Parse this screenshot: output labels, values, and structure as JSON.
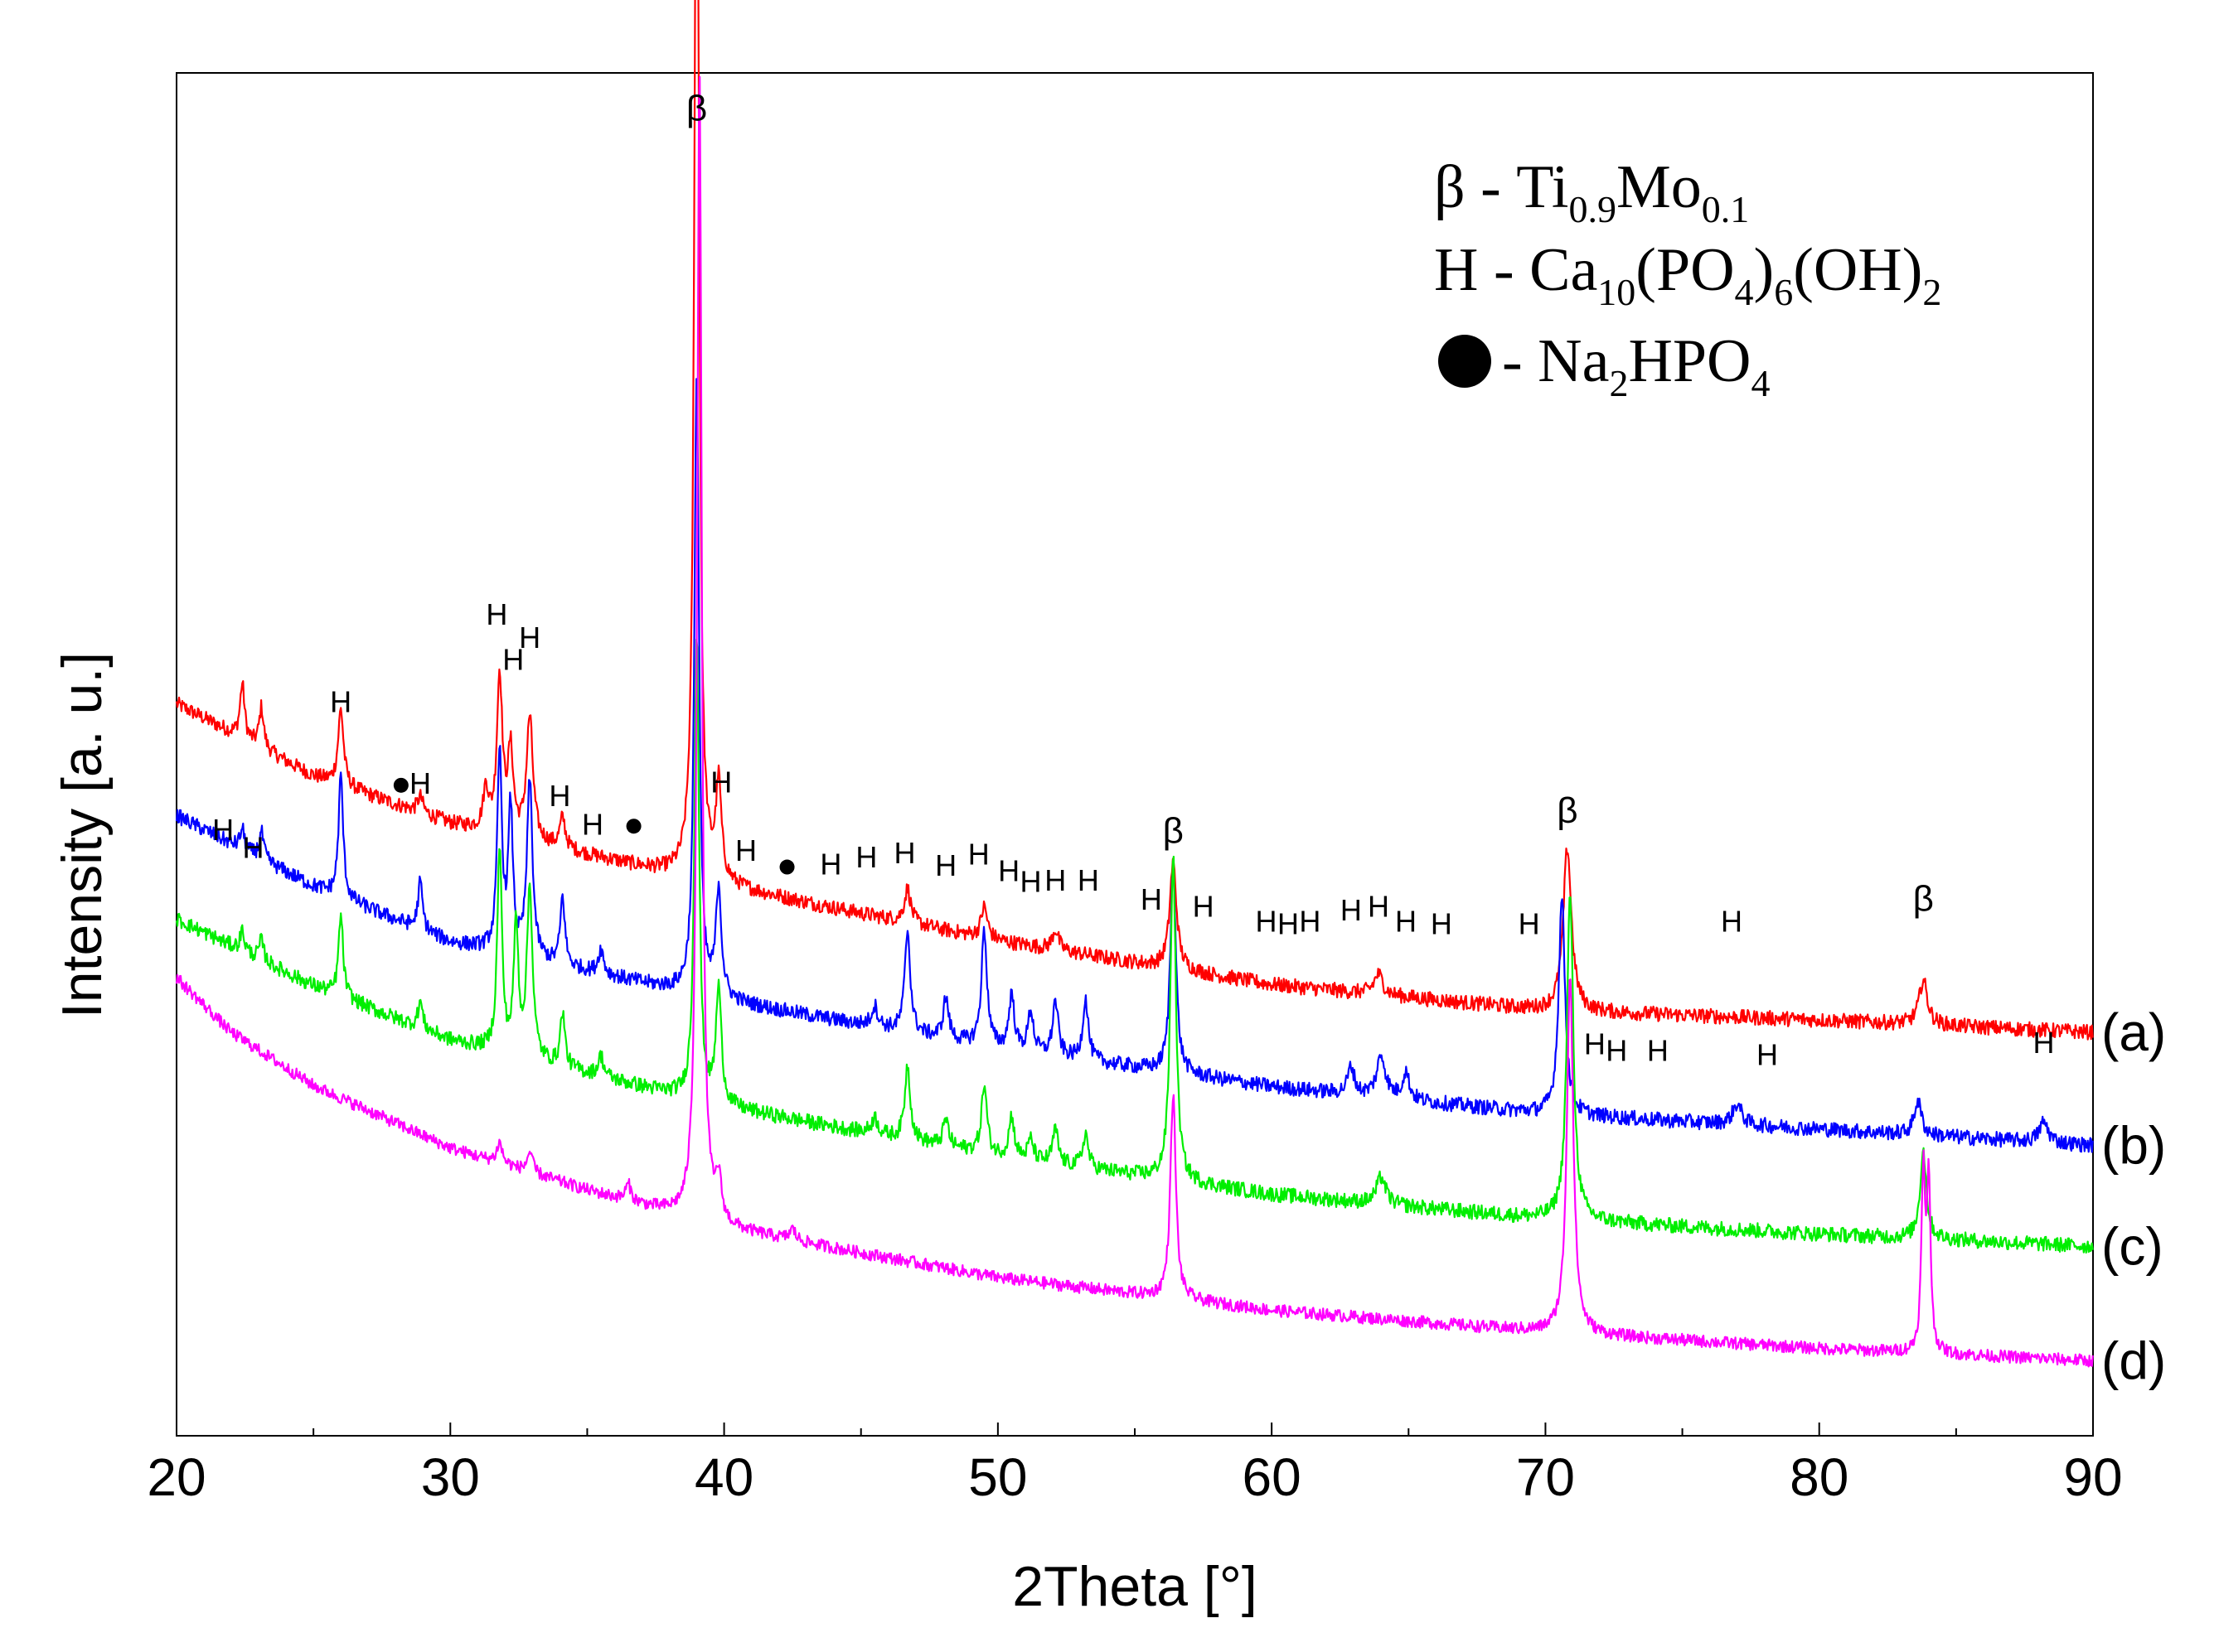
{
  "chart_data": {
    "type": "line",
    "title": "",
    "xlabel": "2Theta [°]",
    "ylabel": "Intensity [a. u.]",
    "xlim": [
      20,
      90
    ],
    "ylim": [
      0,
      100
    ],
    "xticks": [
      "20",
      "30",
      "40",
      "50",
      "60",
      "70",
      "80",
      "90"
    ],
    "legend": [
      {
        "symbol": "β",
        "dash": " - ",
        "formula": [
          [
            "Ti",
            ""
          ],
          [
            "0.9",
            "sub"
          ],
          [
            "Mo",
            ""
          ],
          [
            "0.1",
            "sub"
          ]
        ]
      },
      {
        "symbol": "H",
        "dash": " - ",
        "formula": [
          [
            "Ca",
            ""
          ],
          [
            "10",
            "sub"
          ],
          [
            "(PO",
            ""
          ],
          [
            "4",
            "sub"
          ],
          [
            ")",
            ""
          ],
          [
            "6",
            "sub"
          ],
          [
            "(OH)",
            ""
          ],
          [
            "2",
            "sub"
          ]
        ]
      },
      {
        "symbol": "●",
        "dash": " - ",
        "formula": [
          [
            "Na",
            ""
          ],
          [
            "2",
            "sub"
          ],
          [
            "HPO",
            ""
          ],
          [
            "4",
            "sub"
          ]
        ]
      }
    ],
    "series": [
      {
        "name": "(a)",
        "color": "#ff0000",
        "baseline": [
          [
            20,
            53.7
          ],
          [
            25,
            48.4
          ],
          [
            30,
            44.9
          ],
          [
            40,
            40.3
          ],
          [
            50,
            36.3
          ],
          [
            60,
            33.1
          ],
          [
            70,
            31.2
          ],
          [
            80,
            30.5
          ],
          [
            90,
            29.6
          ]
        ],
        "peaks": [
          [
            22.4,
            4.0,
            0.1
          ],
          [
            23.1,
            3.0,
            0.1
          ],
          [
            26.0,
            5.6,
            0.12
          ],
          [
            28.9,
            1.2,
            0.12
          ],
          [
            31.3,
            3.0,
            0.12
          ],
          [
            31.8,
            11.5,
            0.12
          ],
          [
            32.2,
            6.0,
            0.12
          ],
          [
            32.9,
            9.0,
            0.14
          ],
          [
            34.1,
            2.2,
            0.12
          ],
          [
            39.0,
            88.3,
            0.1
          ],
          [
            39.8,
            7.0,
            0.12
          ],
          [
            46.7,
            2.5,
            0.14
          ],
          [
            49.5,
            2.3,
            0.14
          ],
          [
            52.1,
            1.5,
            0.14
          ],
          [
            56.4,
            7.8,
            0.15
          ],
          [
            63.9,
            1.5,
            0.2
          ],
          [
            70.8,
            12.0,
            0.18
          ],
          [
            83.8,
            3.3,
            0.18
          ]
        ],
        "noise": 0.55
      },
      {
        "name": "(b)",
        "color": "#0000ff",
        "baseline": [
          [
            20,
            45.5
          ],
          [
            25,
            40.3
          ],
          [
            30,
            36.2
          ],
          [
            40,
            31.9
          ],
          [
            50,
            28.4
          ],
          [
            60,
            25.6
          ],
          [
            70,
            23.6
          ],
          [
            80,
            22.5
          ],
          [
            90,
            21.3
          ]
        ],
        "peaks": [
          [
            22.4,
            1.5,
            0.1
          ],
          [
            23.1,
            2.0,
            0.1
          ],
          [
            26.0,
            9.0,
            0.1
          ],
          [
            28.9,
            3.5,
            0.1
          ],
          [
            31.8,
            14.5,
            0.1
          ],
          [
            32.2,
            10.5,
            0.1
          ],
          [
            32.9,
            13.0,
            0.12
          ],
          [
            34.1,
            5.0,
            0.1
          ],
          [
            35.5,
            1.8,
            0.12
          ],
          [
            39.0,
            46.0,
            0.1
          ],
          [
            39.8,
            8.0,
            0.12
          ],
          [
            45.5,
            1.5,
            0.14
          ],
          [
            46.7,
            7.5,
            0.12
          ],
          [
            48.1,
            3.0,
            0.12
          ],
          [
            49.5,
            8.5,
            0.12
          ],
          [
            50.5,
            4.0,
            0.12
          ],
          [
            51.2,
            3.0,
            0.12
          ],
          [
            52.1,
            4.0,
            0.12
          ],
          [
            53.2,
            4.5,
            0.12
          ],
          [
            56.4,
            15.5,
            0.12
          ],
          [
            62.9,
            2.0,
            0.15
          ],
          [
            64.0,
            3.0,
            0.2
          ],
          [
            64.9,
            2.0,
            0.15
          ],
          [
            70.6,
            16.0,
            0.14
          ],
          [
            77.0,
            1.5,
            0.2
          ],
          [
            83.6,
            2.5,
            0.16
          ],
          [
            88.2,
            1.5,
            0.2
          ]
        ],
        "noise": 0.55
      },
      {
        "name": "(c)",
        "color": "#00ee00",
        "baseline": [
          [
            20,
            37.9
          ],
          [
            25,
            33.0
          ],
          [
            30,
            29.0
          ],
          [
            40,
            24.1
          ],
          [
            50,
            20.5
          ],
          [
            60,
            17.7
          ],
          [
            70,
            15.9
          ],
          [
            80,
            14.8
          ],
          [
            90,
            13.9
          ]
        ],
        "peaks": [
          [
            22.4,
            1.5,
            0.1
          ],
          [
            23.1,
            1.5,
            0.1
          ],
          [
            26.0,
            6.0,
            0.1
          ],
          [
            28.9,
            2.0,
            0.1
          ],
          [
            31.8,
            15.0,
            0.1
          ],
          [
            32.4,
            9.5,
            0.1
          ],
          [
            32.9,
            12.5,
            0.12
          ],
          [
            34.1,
            4.0,
            0.1
          ],
          [
            35.5,
            1.5,
            0.12
          ],
          [
            39.0,
            34.5,
            0.1
          ],
          [
            39.8,
            8.5,
            0.12
          ],
          [
            45.5,
            1.2,
            0.14
          ],
          [
            46.7,
            5.5,
            0.12
          ],
          [
            48.1,
            2.0,
            0.12
          ],
          [
            49.5,
            5.0,
            0.12
          ],
          [
            50.5,
            3.0,
            0.12
          ],
          [
            51.2,
            1.5,
            0.12
          ],
          [
            52.1,
            2.5,
            0.12
          ],
          [
            53.2,
            2.5,
            0.12
          ],
          [
            56.4,
            24.0,
            0.12
          ],
          [
            64.0,
            2.0,
            0.2
          ],
          [
            70.9,
            24.0,
            0.14
          ],
          [
            83.8,
            6.5,
            0.14
          ]
        ],
        "noise": 0.55
      },
      {
        "name": "(d)",
        "color": "#ff00ff",
        "baseline": [
          [
            20,
            33.6
          ],
          [
            22,
            29.6
          ],
          [
            25,
            25.7
          ],
          [
            30,
            21.1
          ],
          [
            35,
            18.0
          ],
          [
            40,
            15.2
          ],
          [
            50,
            11.6
          ],
          [
            60,
            9.2
          ],
          [
            70,
            7.6
          ],
          [
            80,
            6.4
          ],
          [
            90,
            5.5
          ]
        ],
        "peaks": [
          [
            31.8,
            1.5,
            0.12
          ],
          [
            32.9,
            1.5,
            0.12
          ],
          [
            36.5,
            1.2,
            0.12
          ],
          [
            39.1,
            84.5,
            0.1
          ],
          [
            39.8,
            3.0,
            0.12
          ],
          [
            42.5,
            0.8,
            0.14
          ],
          [
            56.4,
            15.0,
            0.12
          ],
          [
            70.9,
            26.5,
            0.14
          ],
          [
            83.8,
            13.0,
            0.08
          ],
          [
            84.0,
            12.5,
            0.08
          ]
        ],
        "noise": 0.45
      }
    ],
    "annotations": [
      {
        "text": "β",
        "x": 39.0,
        "y": 96.5,
        "kind": "beta"
      },
      {
        "text": "β",
        "x": 56.4,
        "y": 43.5,
        "kind": "beta"
      },
      {
        "text": "β",
        "x": 70.8,
        "y": 45.0,
        "kind": "beta"
      },
      {
        "text": "β",
        "x": 83.8,
        "y": 38.5,
        "kind": "beta"
      },
      {
        "text": "H",
        "x": 21.7,
        "y": 43.7,
        "kind": "H"
      },
      {
        "text": "H",
        "x": 22.8,
        "y": 42.4,
        "kind": "H"
      },
      {
        "text": "H",
        "x": 26.0,
        "y": 53.1,
        "kind": "H"
      },
      {
        "text": "H",
        "x": 28.9,
        "y": 47.1,
        "kind": "H"
      },
      {
        "text": "H",
        "x": 31.7,
        "y": 59.5,
        "kind": "H"
      },
      {
        "text": "H",
        "x": 32.3,
        "y": 56.2,
        "kind": "H"
      },
      {
        "text": "H",
        "x": 32.9,
        "y": 57.8,
        "kind": "H"
      },
      {
        "text": "H",
        "x": 34.0,
        "y": 46.2,
        "kind": "H"
      },
      {
        "text": "H",
        "x": 35.2,
        "y": 44.1,
        "kind": "H"
      },
      {
        "text": "H",
        "x": 39.9,
        "y": 47.2,
        "kind": "H"
      },
      {
        "text": "H",
        "x": 40.8,
        "y": 42.2,
        "kind": "H"
      },
      {
        "text": "H",
        "x": 43.9,
        "y": 41.2,
        "kind": "H"
      },
      {
        "text": "H",
        "x": 45.2,
        "y": 41.7,
        "kind": "H"
      },
      {
        "text": "H",
        "x": 46.6,
        "y": 42.0,
        "kind": "H"
      },
      {
        "text": "H",
        "x": 48.1,
        "y": 41.1,
        "kind": "H"
      },
      {
        "text": "H",
        "x": 49.3,
        "y": 41.9,
        "kind": "H"
      },
      {
        "text": "H",
        "x": 50.4,
        "y": 40.7,
        "kind": "H"
      },
      {
        "text": "H",
        "x": 51.2,
        "y": 39.9,
        "kind": "H"
      },
      {
        "text": "H",
        "x": 52.1,
        "y": 40.0,
        "kind": "H"
      },
      {
        "text": "H",
        "x": 53.3,
        "y": 40.0,
        "kind": "H"
      },
      {
        "text": "H",
        "x": 55.6,
        "y": 38.6,
        "kind": "H"
      },
      {
        "text": "H",
        "x": 57.5,
        "y": 38.1,
        "kind": "H"
      },
      {
        "text": "H",
        "x": 59.8,
        "y": 37.0,
        "kind": "H"
      },
      {
        "text": "H",
        "x": 60.6,
        "y": 36.8,
        "kind": "H"
      },
      {
        "text": "H",
        "x": 61.4,
        "y": 37.0,
        "kind": "H"
      },
      {
        "text": "H",
        "x": 62.9,
        "y": 37.8,
        "kind": "H"
      },
      {
        "text": "H",
        "x": 63.9,
        "y": 38.1,
        "kind": "H"
      },
      {
        "text": "H",
        "x": 64.9,
        "y": 37.0,
        "kind": "H"
      },
      {
        "text": "H",
        "x": 66.2,
        "y": 36.8,
        "kind": "H"
      },
      {
        "text": "H",
        "x": 69.4,
        "y": 36.8,
        "kind": "H"
      },
      {
        "text": "H",
        "x": 76.8,
        "y": 37.0,
        "kind": "H"
      },
      {
        "text": "H",
        "x": 71.8,
        "y": 28.0,
        "kind": "H"
      },
      {
        "text": "H",
        "x": 72.6,
        "y": 27.5,
        "kind": "H"
      },
      {
        "text": "H",
        "x": 74.1,
        "y": 27.5,
        "kind": "H"
      },
      {
        "text": "H",
        "x": 78.1,
        "y": 27.2,
        "kind": "H"
      },
      {
        "text": "H",
        "x": 88.2,
        "y": 28.1,
        "kind": "H"
      },
      {
        "text": "●",
        "x": 28.2,
        "y": 47.0,
        "kind": "dot"
      },
      {
        "text": "●",
        "x": 36.7,
        "y": 44.0,
        "kind": "dot"
      },
      {
        "text": "●",
        "x": 42.3,
        "y": 41.0,
        "kind": "dot"
      }
    ]
  }
}
